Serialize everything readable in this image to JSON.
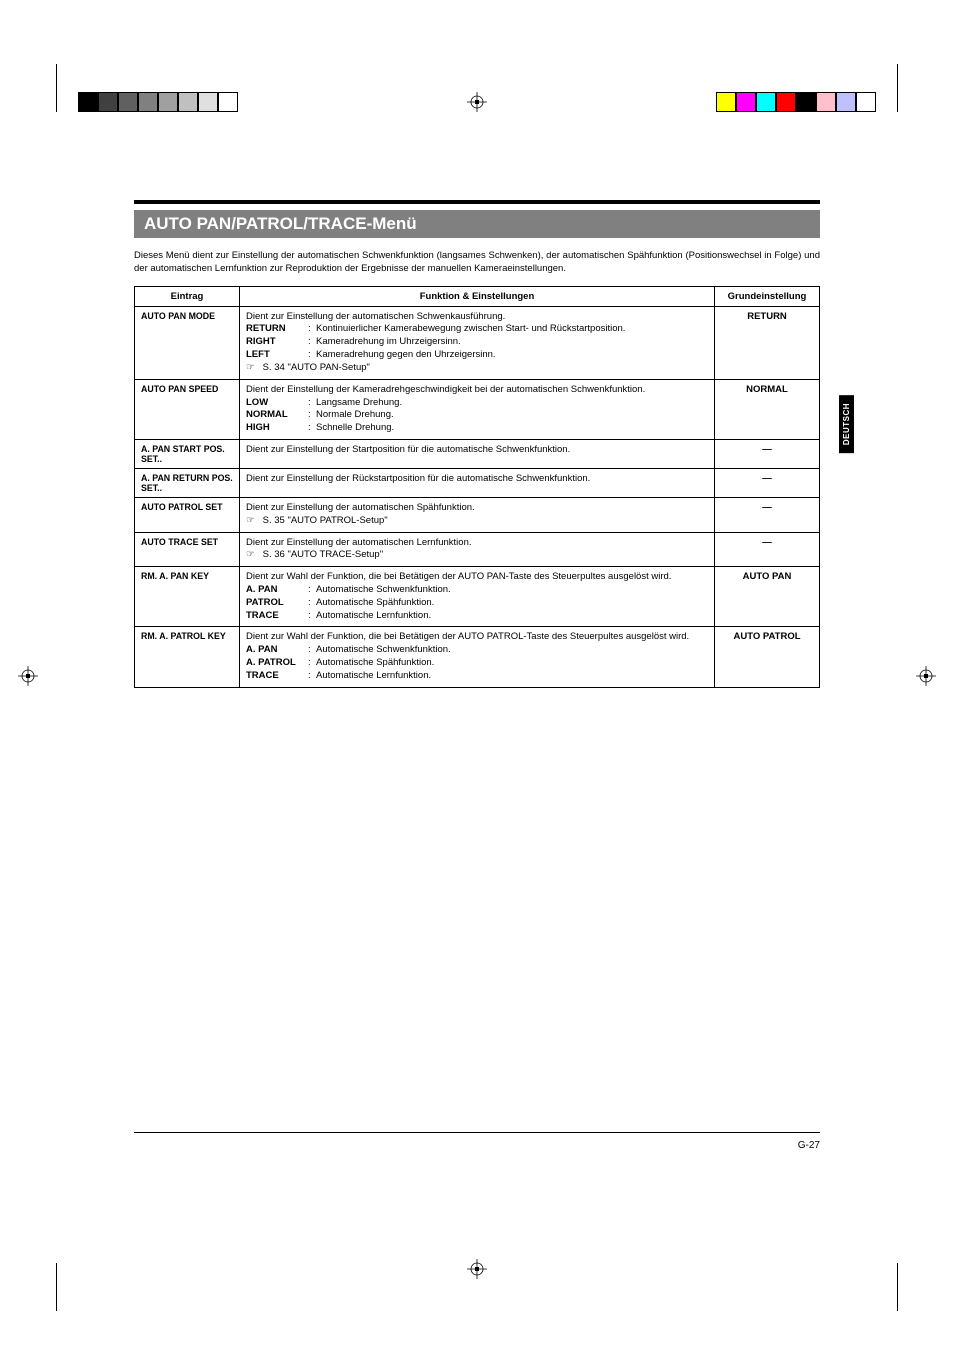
{
  "registration": {
    "left_colors": [
      "#000000",
      "#404040",
      "#606060",
      "#808080",
      "#a0a0a0",
      "#c0c0c0",
      "#e0e0e0",
      "#ffffff"
    ],
    "right_colors": [
      "#ffff00",
      "#ff00ff",
      "#00ffff",
      "#ff0000",
      "#000000",
      "#ffc0cb",
      "#c0c0ff",
      "#ffffff"
    ]
  },
  "side_tab": "DEUTSCH",
  "page_number": "G-27",
  "title": "AUTO PAN/PATROL/TRACE-Menü",
  "intro": "Dieses Menü dient zur Einstellung der automatischen Schwenkfunktion (langsames Schwenken), der automatischen Spähfunktion (Positionswechsel in Folge) und der automatischen Lernfunktion zur Reproduktion der Ergebnisse der manuellen Kameraeinstellungen.",
  "headers": {
    "col1": "Eintrag",
    "col2": "Funktion & Einstellungen",
    "col3": "Grundeinstellung"
  },
  "rows": [
    {
      "name": "AUTO PAN MODE",
      "default": "RETURN",
      "lead": "Dient zur Einstellung der automatischen Schwenkausführung.",
      "options": [
        {
          "key": "RETURN",
          "val": "Kontinuierlicher Kamerabewegung zwischen Start- und Rückstartposition."
        },
        {
          "key": "RIGHT",
          "val": "Kameradrehung im Uhrzeigersinn."
        },
        {
          "key": "LEFT",
          "val": "Kameradrehung gegen den Uhrzeigersinn."
        }
      ],
      "ref": "S. 34 \"AUTO PAN-Setup\""
    },
    {
      "name": "AUTO PAN SPEED",
      "default": "NORMAL",
      "lead": "Dient der Einstellung der Kameradrehgeschwindigkeit bei der automatischen Schwenkfunktion.",
      "options": [
        {
          "key": "LOW",
          "val": "Langsame Drehung."
        },
        {
          "key": "NORMAL",
          "val": "Normale Drehung."
        },
        {
          "key": "HIGH",
          "val": "Schnelle Drehung."
        }
      ]
    },
    {
      "name": "A. PAN START POS. SET..",
      "default": "—",
      "lead": "Dient zur Einstellung der Startposition für die automatische Schwenkfunktion."
    },
    {
      "name": "A. PAN RETURN POS. SET..",
      "default": "—",
      "lead": "Dient zur Einstellung der Rückstartposition für die automatische Schwenkfunktion."
    },
    {
      "name": "AUTO PATROL SET",
      "default": "—",
      "lead": "Dient zur Einstellung der automatischen Spähfunktion.",
      "ref": "S. 35 \"AUTO PATROL-Setup\""
    },
    {
      "name": "AUTO TRACE SET",
      "default": "—",
      "lead": "Dient zur Einstellung der automatischen Lernfunktion.",
      "ref": "S. 36 \"AUTO TRACE-Setup\""
    },
    {
      "name": "RM. A. PAN KEY",
      "default": "AUTO PAN",
      "lead": "Dient zur Wahl der Funktion, die bei Betätigen der AUTO PAN-Taste des Steuerpultes ausgelöst wird.",
      "options": [
        {
          "key": "A. PAN",
          "val": "Automatische Schwenkfunktion."
        },
        {
          "key": "PATROL",
          "val": "Automatische Spähfunktion."
        },
        {
          "key": "TRACE",
          "val": "Automatische Lernfunktion."
        }
      ]
    },
    {
      "name": "RM. A. PATROL KEY",
      "default": "AUTO PATROL",
      "lead": "Dient zur Wahl der Funktion, die bei Betätigen der AUTO PATROL-Taste des Steuerpultes ausgelöst wird.",
      "options": [
        {
          "key": "A. PAN",
          "val": "Automatische Schwenkfunktion."
        },
        {
          "key": "A. PATROL",
          "val": "Automatische Spähfunktion."
        },
        {
          "key": "TRACE",
          "val": "Automatische Lernfunktion."
        }
      ]
    }
  ]
}
